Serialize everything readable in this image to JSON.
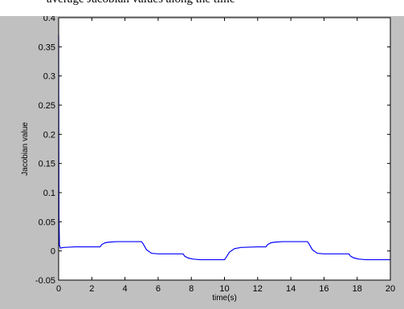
{
  "caption": "average Jacobian values along the time",
  "chart_data": {
    "type": "line",
    "title": "",
    "xlabel": "time(s)",
    "ylabel": "Jacobian value",
    "xlim": [
      0,
      20
    ],
    "ylim": [
      -0.05,
      0.4
    ],
    "xticks": [
      0,
      2,
      4,
      6,
      8,
      10,
      12,
      14,
      16,
      18,
      20
    ],
    "yticks": [
      -0.05,
      0,
      0.05,
      0.1,
      0.15,
      0.2,
      0.25,
      0.3,
      0.35,
      0.4
    ],
    "xtick_labels": [
      "0",
      "2",
      "4",
      "6",
      "8",
      "10",
      "12",
      "14",
      "16",
      "18",
      "20"
    ],
    "ytick_labels": [
      "-0.05",
      "0",
      "0.05",
      "0.1",
      "0.15",
      "0.2",
      "0.25",
      "0.3",
      "0.35",
      "0.4"
    ],
    "grid": false,
    "series": [
      {
        "color": "#0000ff",
        "x": [
          0,
          0.02,
          0.05,
          0.1,
          0.3,
          1.0,
          2.0,
          2.5,
          2.6,
          2.8,
          3.0,
          3.5,
          4.0,
          4.5,
          5.0,
          5.1,
          5.3,
          5.6,
          6.0,
          7.0,
          7.5,
          7.6,
          7.8,
          8.1,
          8.5,
          9.0,
          9.5,
          10.0,
          10.1,
          10.3,
          10.6,
          11.0,
          12.0,
          12.5,
          12.6,
          12.8,
          13.0,
          13.5,
          14.0,
          14.5,
          15.0,
          15.1,
          15.3,
          15.6,
          16.0,
          17.0,
          17.5,
          17.6,
          17.8,
          18.1,
          18.5,
          19.0,
          20.0
        ],
        "y": [
          0.37,
          0.06,
          0.01,
          0.005,
          0.006,
          0.007,
          0.007,
          0.007,
          0.011,
          0.014,
          0.015,
          0.016,
          0.016,
          0.016,
          0.016,
          0.012,
          0.002,
          -0.004,
          -0.005,
          -0.005,
          -0.005,
          -0.009,
          -0.012,
          -0.014,
          -0.015,
          -0.015,
          -0.015,
          -0.015,
          -0.011,
          -0.002,
          0.004,
          0.006,
          0.007,
          0.007,
          0.011,
          0.014,
          0.015,
          0.016,
          0.016,
          0.016,
          0.016,
          0.012,
          0.002,
          -0.004,
          -0.005,
          -0.005,
          -0.005,
          -0.009,
          -0.012,
          -0.014,
          -0.015,
          -0.015,
          -0.015
        ]
      }
    ]
  }
}
